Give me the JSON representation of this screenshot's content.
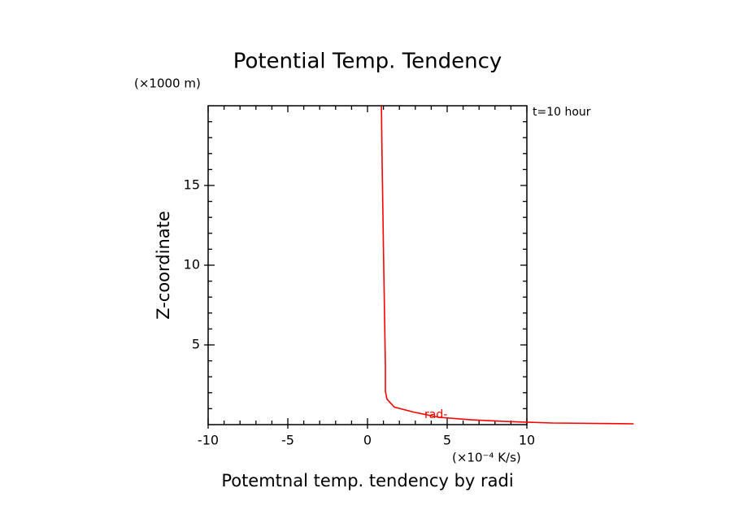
{
  "chart_data": {
    "type": "line",
    "title": "Potential Temp. Tendency",
    "x_label": "Potemtnal temp. tendency by radi",
    "y_label": "Z-coordinate",
    "x_unit": "(×10⁻⁴ K/s)",
    "y_unit": "(×1000 m)",
    "annotation": "t=10 hour",
    "xlim": [
      -10,
      10
    ],
    "ylim": [
      0,
      20
    ],
    "xticks": [
      -10,
      -5,
      0,
      5,
      10
    ],
    "yticks": [
      5,
      10,
      15
    ],
    "xminorticks": [
      -9,
      -8,
      -7,
      -6,
      -4,
      -3,
      -2,
      -1,
      1,
      2,
      3,
      4,
      6,
      7,
      8,
      9
    ],
    "yminorticks": [
      1,
      2,
      3,
      4,
      6,
      7,
      8,
      9,
      11,
      12,
      13,
      14,
      16,
      17,
      18,
      19
    ],
    "series": [
      {
        "name": "rad-",
        "color": "#ff0000",
        "x": [
          0.87,
          0.92,
          1.02,
          1.12,
          1.12,
          1.22,
          1.68,
          2.96,
          4.49,
          6.5,
          8.6,
          11.6,
          16.7
        ],
        "y": [
          20,
          16.4,
          9.8,
          3.7,
          2.1,
          1.6,
          1.1,
          0.77,
          0.46,
          0.3,
          0.2,
          0.1,
          0.05
        ]
      }
    ]
  }
}
